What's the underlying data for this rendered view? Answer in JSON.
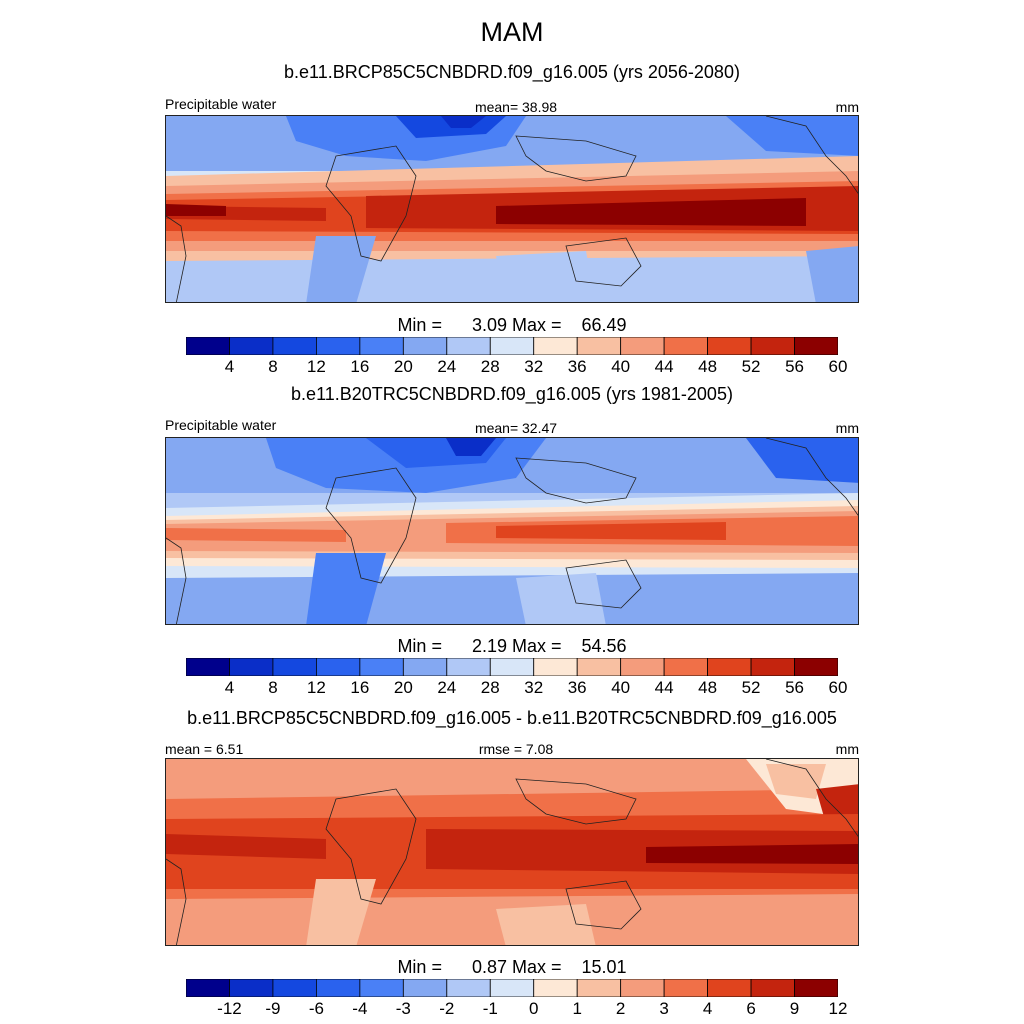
{
  "figure": {
    "title": "MAM"
  },
  "chart_data": [
    {
      "type": "heatmap",
      "title": "b.e11.BRCP85C5CNBDRD.f09_g16.005 (yrs 2056-2080)",
      "variable_label": "Precipitable water",
      "stat_label": "mean=  38.98",
      "units": "mm",
      "min_label": "Min =",
      "min": "3.09",
      "max_label": "Max =",
      "max": "66.49",
      "mean": 38.98,
      "colorbar": {
        "levels": [
          "4",
          "8",
          "12",
          "16",
          "20",
          "24",
          "28",
          "32",
          "36",
          "40",
          "44",
          "48",
          "52",
          "56",
          "60"
        ],
        "colors": [
          "#00008c",
          "#0a2ec8",
          "#1448e0",
          "#2a62ee",
          "#4a80f6",
          "#84a8f2",
          "#b0c8f6",
          "#d8e6f8",
          "#fde8d6",
          "#f8c0a2",
          "#f49c7c",
          "#f07048",
          "#e0441e",
          "#c4240e",
          "#8c0000"
        ]
      }
    },
    {
      "type": "heatmap",
      "title": "b.e11.B20TRC5CNBDRD.f09_g16.005 (yrs 1981-2005)",
      "variable_label": "Precipitable water",
      "stat_label": "mean=  32.47",
      "units": "mm",
      "min_label": "Min =",
      "min": "2.19",
      "max_label": "Max =",
      "max": "54.56",
      "mean": 32.47,
      "colorbar": {
        "levels": [
          "4",
          "8",
          "12",
          "16",
          "20",
          "24",
          "28",
          "32",
          "36",
          "40",
          "44",
          "48",
          "52",
          "56",
          "60"
        ],
        "colors": [
          "#00008c",
          "#0a2ec8",
          "#1448e0",
          "#2a62ee",
          "#4a80f6",
          "#84a8f2",
          "#b0c8f6",
          "#d8e6f8",
          "#fde8d6",
          "#f8c0a2",
          "#f49c7c",
          "#f07048",
          "#e0441e",
          "#c4240e",
          "#8c0000"
        ]
      }
    },
    {
      "type": "heatmap",
      "title": "b.e11.BRCP85C5CNBDRD.f09_g16.005 - b.e11.B20TRC5CNBDRD.f09_g16.005",
      "stat_label": "mean =   6.51",
      "stat2_label": "rmse =   7.08",
      "units": "mm",
      "min_label": "Min =",
      "min": "0.87",
      "max_label": "Max =",
      "max": "15.01",
      "mean": 6.51,
      "rmse": 7.08,
      "colorbar": {
        "levels": [
          "-12",
          "-9",
          "-6",
          "-4",
          "-3",
          "-2",
          "-1",
          "0",
          "1",
          "2",
          "3",
          "4",
          "6",
          "9",
          "12"
        ],
        "colors": [
          "#00008c",
          "#0a2ec8",
          "#1448e0",
          "#2a62ee",
          "#4a80f6",
          "#84a8f2",
          "#b0c8f6",
          "#d8e6f8",
          "#fde8d6",
          "#f8c0a2",
          "#f49c7c",
          "#f07048",
          "#e0441e",
          "#c4240e",
          "#8c0000"
        ]
      }
    }
  ]
}
